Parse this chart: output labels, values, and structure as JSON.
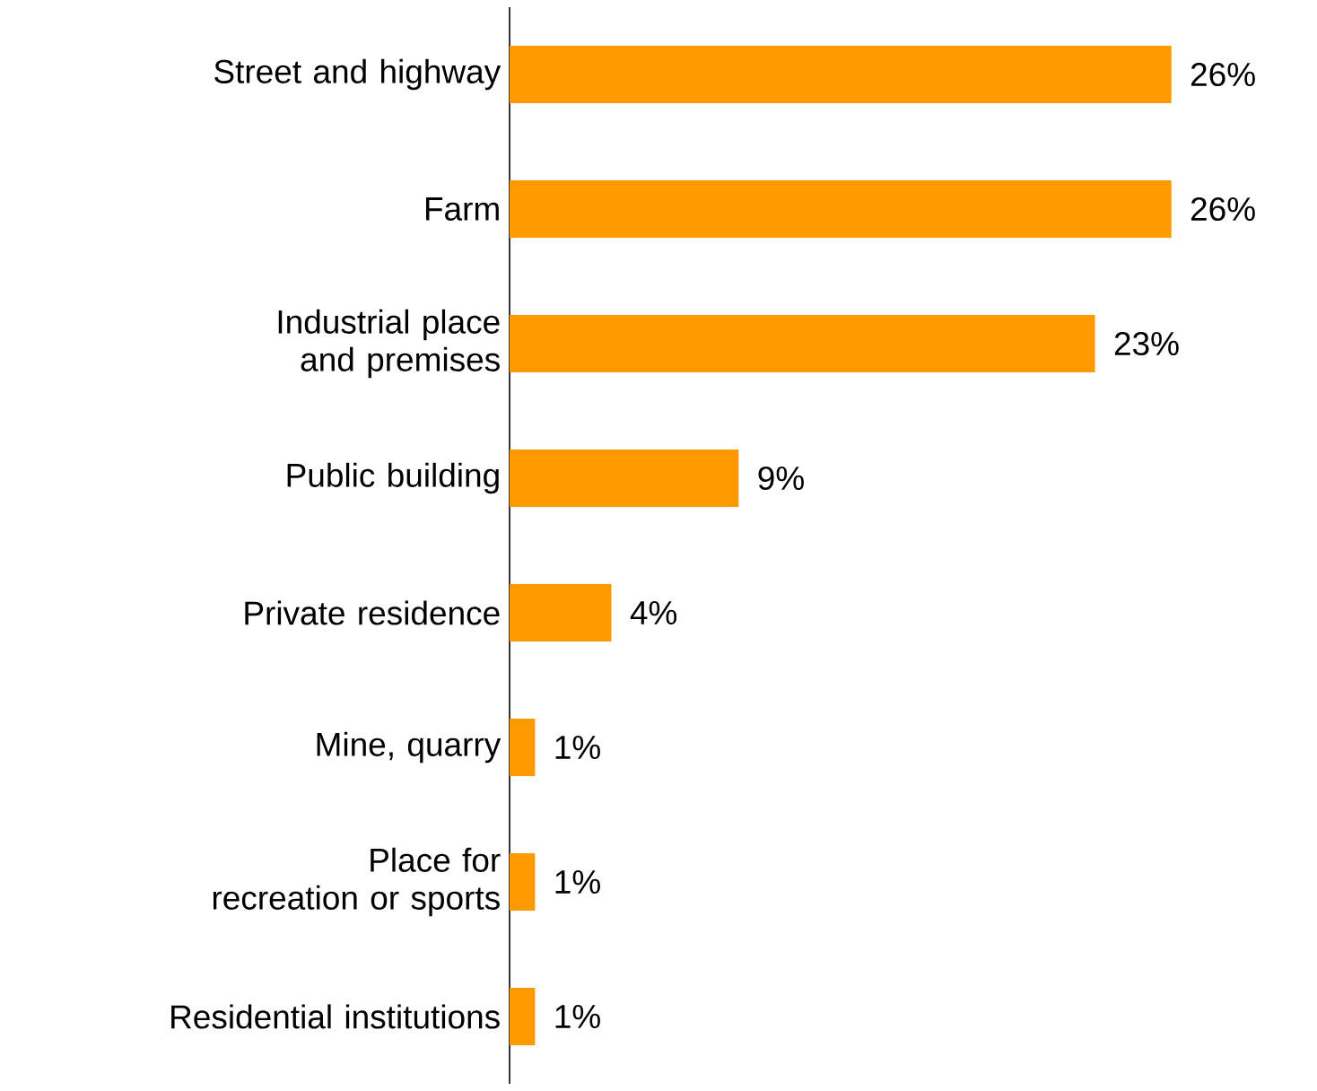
{
  "chart_data": {
    "type": "bar",
    "orientation": "horizontal",
    "categories": [
      "Street and highway",
      "Farm",
      "Industrial place and premises",
      "Public building",
      "Private residence",
      "Mine, quarry",
      "Place for recreation or sports",
      "Residential institutions"
    ],
    "values": [
      26,
      26,
      23,
      9,
      4,
      1,
      1,
      1
    ],
    "value_labels": [
      "26%",
      "26%",
      "23%",
      "9%",
      "4%",
      "1%",
      "1%",
      "1%"
    ],
    "color": "#ff9900",
    "tick_labels": "y"
  }
}
